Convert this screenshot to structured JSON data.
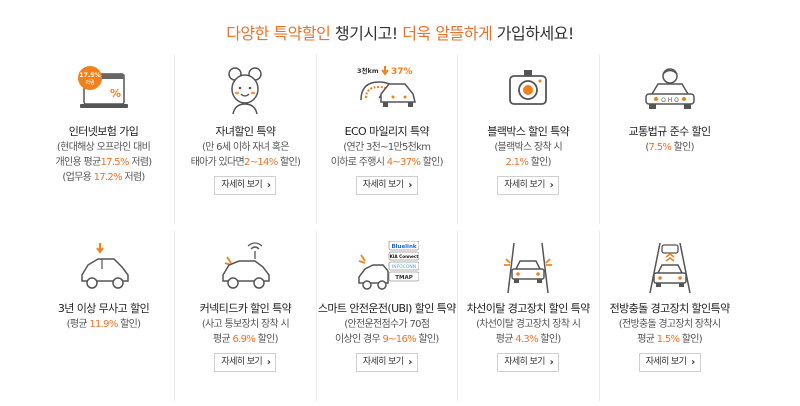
{
  "headline": {
    "part1": "다양한 특약할인",
    "part2": " 챙기시고! ",
    "part3": "더욱 알뜰하게",
    "part4": " 가입하세요!"
  },
  "detail_label": "자세히 보기",
  "items": [
    {
      "title": "인터넷보험 가입",
      "icon": "laptop-discount-icon",
      "badge": "17.5%\n저렴",
      "lines": [
        [
          {
            "t": "(현대해상 오프라인 대비"
          }
        ],
        [
          {
            "t": "개인용 평균"
          },
          {
            "t": "17.5%",
            "hl": true
          },
          {
            "t": " 저렴)"
          }
        ],
        [
          {
            "t": "(업무용 "
          },
          {
            "t": "17.2%",
            "hl": true
          },
          {
            "t": " 저렴)"
          }
        ]
      ],
      "has_detail": false
    },
    {
      "title": "자녀할인 특약",
      "icon": "child-icon",
      "lines": [
        [
          {
            "t": "(만 6세 이하 자녀 혹은"
          }
        ],
        [
          {
            "t": "태아가 있다면"
          },
          {
            "t": "2~14%",
            "hl": true
          },
          {
            "t": " 할인)"
          }
        ]
      ],
      "has_detail": true
    },
    {
      "title": "ECO 마일리지 특약",
      "icon": "eco-mileage-car-icon",
      "badge_left": "3천km",
      "badge_right": "37%",
      "lines": [
        [
          {
            "t": "(연간 3천~1만5천km"
          }
        ],
        [
          {
            "t": "이하로 주행시 "
          },
          {
            "t": "4~37%",
            "hl": true
          },
          {
            "t": " 할인)"
          }
        ]
      ],
      "has_detail": true
    },
    {
      "title": "블랙박스 할인 특약",
      "icon": "blackbox-camera-icon",
      "lines": [
        [
          {
            "t": "(블랙박스 장착 시"
          }
        ],
        [
          {
            "t": "2.1%",
            "hl": true
          },
          {
            "t": " 할인)"
          }
        ]
      ],
      "has_detail": true
    },
    {
      "title": "교통법규 준수 할인",
      "icon": "driver-car-icon",
      "lines": [
        [
          {
            "t": "("
          },
          {
            "t": "7.5%",
            "hl": true
          },
          {
            "t": " 할인)"
          }
        ]
      ],
      "has_detail": false
    },
    {
      "title": "3년 이상 무사고 할인",
      "icon": "safe-car-icon",
      "lines": [
        [
          {
            "t": "(평균 "
          },
          {
            "t": "11.9%",
            "hl": true
          },
          {
            "t": " 할인)"
          }
        ]
      ],
      "has_detail": false
    },
    {
      "title": "커넥티드카 할인 특약",
      "icon": "connected-car-icon",
      "lines": [
        [
          {
            "t": "(사고 통보장치 장착 시"
          }
        ],
        [
          {
            "t": "평균 "
          },
          {
            "t": "6.9%",
            "hl": true
          },
          {
            "t": " 할인)"
          }
        ]
      ],
      "has_detail": true
    },
    {
      "title": "스마트 안전운전(UBI) 할인 특약",
      "icon": "smart-driving-car-icon",
      "brands": [
        "Bluelink",
        "KIA Connect",
        "INFOCONN",
        "TMAP"
      ],
      "lines": [
        [
          {
            "t": "(안전운전점수가 70점"
          }
        ],
        [
          {
            "t": "이상인 경우 "
          },
          {
            "t": "9~16%",
            "hl": true
          },
          {
            "t": " 할인)"
          }
        ]
      ],
      "has_detail": true
    },
    {
      "title": "차선이탈 경고장치 할인 특약",
      "icon": "lane-departure-icon",
      "lines": [
        [
          {
            "t": "(차선이탈 경고장치 장착 시"
          }
        ],
        [
          {
            "t": "평균 "
          },
          {
            "t": "4.3%",
            "hl": true
          },
          {
            "t": " 할인)"
          }
        ]
      ],
      "has_detail": true
    },
    {
      "title": "전방충돌 경고장치 할인특약",
      "icon": "forward-collision-icon",
      "lines": [
        [
          {
            "t": "(전방충돌 경고장치 장착시"
          }
        ],
        [
          {
            "t": "평균 "
          },
          {
            "t": "1.5%",
            "hl": true
          },
          {
            "t": " 할인)"
          }
        ]
      ],
      "has_detail": true
    }
  ]
}
